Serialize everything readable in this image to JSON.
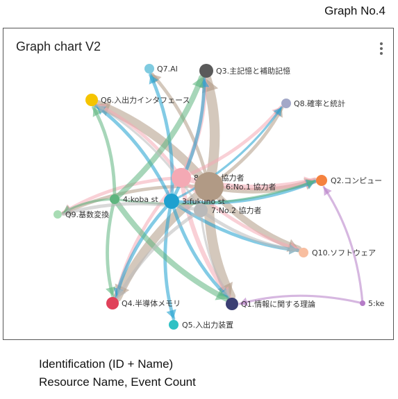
{
  "page": {
    "top_label": "Graph No.4",
    "caption_line1": "Identification (ID + Name)",
    "caption_line2": "Resource Name, Event Count"
  },
  "card": {
    "title": "Graph chart V2",
    "menu_icon": "kebab-menu-icon"
  },
  "graph": {
    "nodes": [
      {
        "id": "q7",
        "label": "Q7.AI",
        "color": "#7fcbe0"
      },
      {
        "id": "q3",
        "label": "Q3.主記憶と補助記憶",
        "color": "#5a5a5a"
      },
      {
        "id": "q6",
        "label": "Q6.入出力インタフェース",
        "color": "#f5c400"
      },
      {
        "id": "q8",
        "label": "Q8.確率と統計",
        "color": "#a3a8c8"
      },
      {
        "id": "n8",
        "label": "8:No.3 協力者",
        "color": "#f4a9b4"
      },
      {
        "id": "n6",
        "label": "6:No.1 協力者",
        "color": "#b19a85"
      },
      {
        "id": "q2",
        "label": "Q2.コンピュー",
        "color": "#f5823f"
      },
      {
        "id": "n4",
        "label": "4:koba st",
        "color": "#5eb57f"
      },
      {
        "id": "n3",
        "label": "3:fukuno st",
        "color": "#1ea0cf"
      },
      {
        "id": "n7",
        "label": "7:No.2 協力者",
        "color": "#b9b9b9"
      },
      {
        "id": "q9",
        "label": "Q9.基数変換",
        "color": "#a8dcb4"
      },
      {
        "id": "q10",
        "label": "Q10.ソフトウェア",
        "color": "#f8bea0"
      },
      {
        "id": "q4",
        "label": "Q4.半導体メモリ",
        "color": "#e0415a"
      },
      {
        "id": "q1",
        "label": "Q1.情報に関する理論",
        "color": "#3b3f73"
      },
      {
        "id": "n5",
        "label": "5:ke",
        "color": "#b57cc7"
      },
      {
        "id": "q5",
        "label": "Q5.入出力装置",
        "color": "#2ec1c4"
      }
    ],
    "edges": [
      {
        "source": "n6",
        "target": "q3",
        "weight": 9
      },
      {
        "source": "n6",
        "target": "q6",
        "weight": 8
      },
      {
        "source": "n6",
        "target": "q1",
        "weight": 9
      },
      {
        "source": "n6",
        "target": "q4",
        "weight": 8
      },
      {
        "source": "n6",
        "target": "q2",
        "weight": 5
      },
      {
        "source": "n6",
        "target": "q10",
        "weight": 6
      },
      {
        "source": "n6",
        "target": "q8",
        "weight": 3
      },
      {
        "source": "n6",
        "target": "q9",
        "weight": 3
      },
      {
        "source": "n6",
        "target": "q7",
        "weight": 3
      },
      {
        "source": "n8",
        "target": "q3",
        "weight": 4
      },
      {
        "source": "n8",
        "target": "q6",
        "weight": 3
      },
      {
        "source": "n8",
        "target": "q2",
        "weight": 5
      },
      {
        "source": "n8",
        "target": "q1",
        "weight": 4
      },
      {
        "source": "n8",
        "target": "q4",
        "weight": 3
      },
      {
        "source": "n8",
        "target": "q9",
        "weight": 3
      },
      {
        "source": "n8",
        "target": "q8",
        "weight": 3
      },
      {
        "source": "n8",
        "target": "q10",
        "weight": 3
      },
      {
        "source": "n3",
        "target": "q7",
        "weight": 3
      },
      {
        "source": "n3",
        "target": "q3",
        "weight": 3
      },
      {
        "source": "n3",
        "target": "q6",
        "weight": 3
      },
      {
        "source": "n3",
        "target": "q2",
        "weight": 3
      },
      {
        "source": "n3",
        "target": "q10",
        "weight": 3
      },
      {
        "source": "n3",
        "target": "q1",
        "weight": 3
      },
      {
        "source": "n3",
        "target": "q5",
        "weight": 3
      },
      {
        "source": "n3",
        "target": "q4",
        "weight": 3
      },
      {
        "source": "n3",
        "target": "q8",
        "weight": 2
      },
      {
        "source": "n4",
        "target": "q3",
        "weight": 5
      },
      {
        "source": "n4",
        "target": "q1",
        "weight": 5
      },
      {
        "source": "n4",
        "target": "q6",
        "weight": 3
      },
      {
        "source": "n4",
        "target": "q4",
        "weight": 3
      },
      {
        "source": "n4",
        "target": "q2",
        "weight": 2
      },
      {
        "source": "n4",
        "target": "q9",
        "weight": 2
      },
      {
        "source": "n7",
        "target": "q9",
        "weight": 3
      },
      {
        "source": "n7",
        "target": "q4",
        "weight": 3
      },
      {
        "source": "n7",
        "target": "q10",
        "weight": 3
      },
      {
        "source": "n7",
        "target": "q6",
        "weight": 2
      },
      {
        "source": "n7",
        "target": "q1",
        "weight": 2
      },
      {
        "source": "n5",
        "target": "q1",
        "weight": 2
      },
      {
        "source": "n5",
        "target": "q2",
        "weight": 2
      }
    ]
  }
}
